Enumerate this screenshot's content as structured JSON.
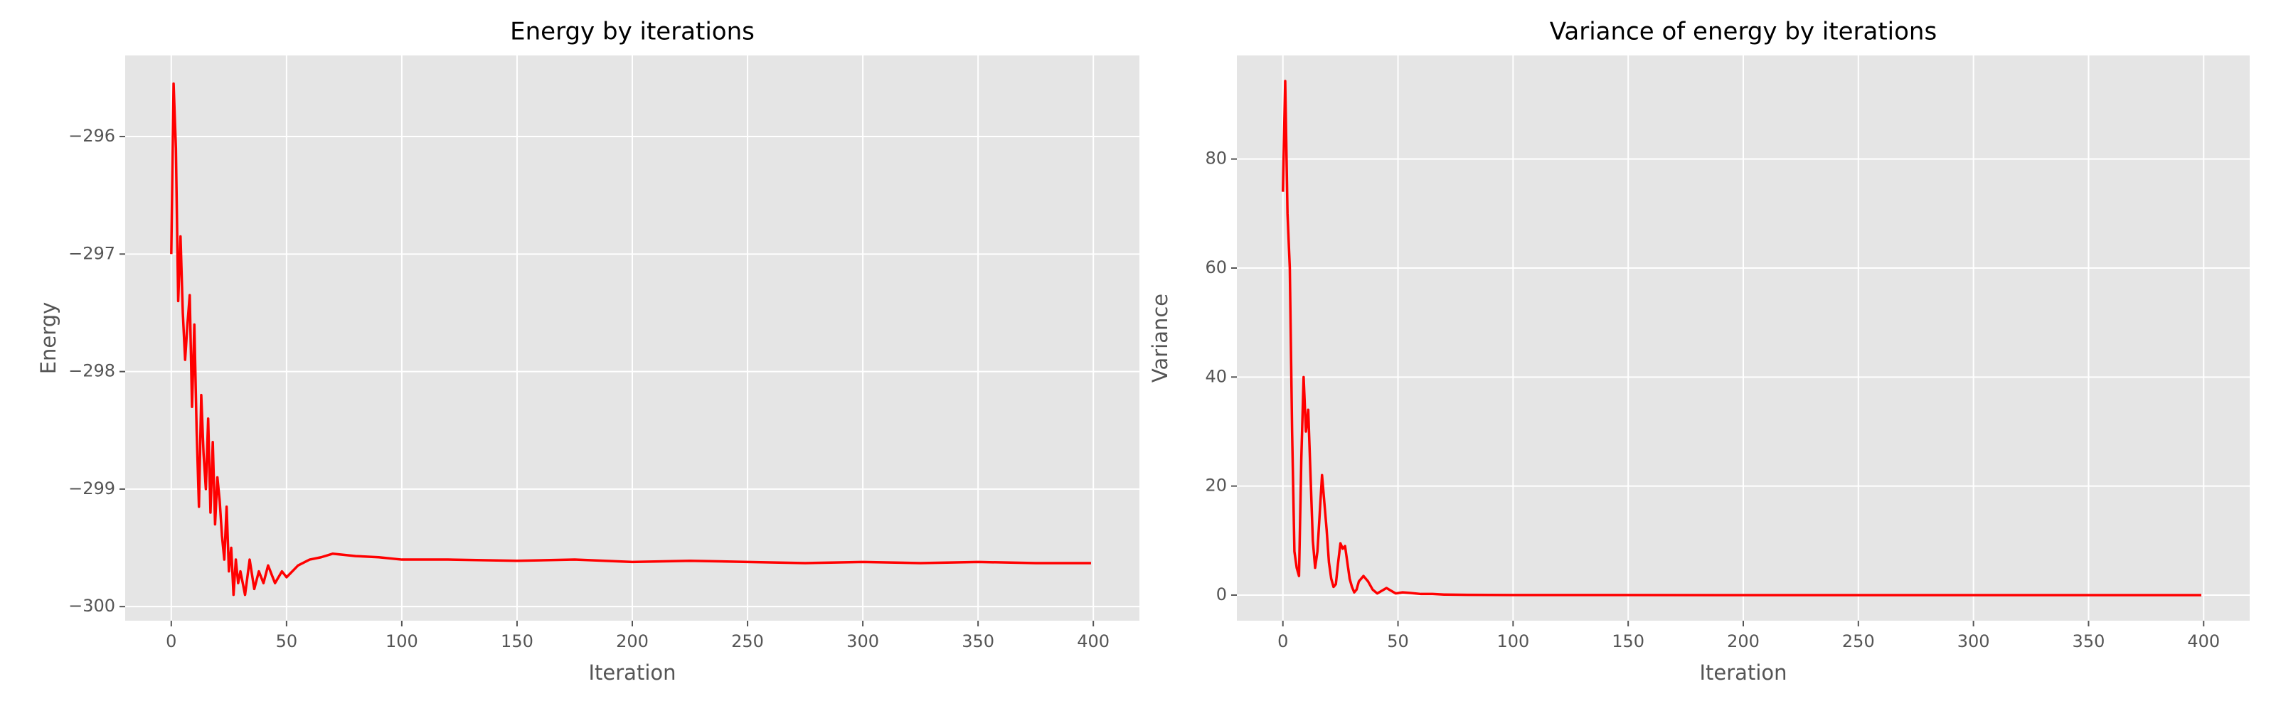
{
  "chart_data": [
    {
      "type": "line",
      "title": "Energy by iterations",
      "xlabel": "Iteration",
      "ylabel": "Energy",
      "color": "#ff0000",
      "grid": true,
      "x": [
        0,
        1,
        2,
        3,
        4,
        5,
        6,
        7,
        8,
        9,
        10,
        11,
        12,
        13,
        14,
        15,
        16,
        17,
        18,
        19,
        20,
        21,
        22,
        23,
        24,
        25,
        26,
        27,
        28,
        29,
        30,
        32,
        34,
        36,
        38,
        40,
        42,
        45,
        48,
        50,
        55,
        60,
        65,
        70,
        80,
        90,
        100,
        120,
        150,
        175,
        200,
        225,
        250,
        275,
        300,
        325,
        350,
        375,
        399
      ],
      "values": [
        -297.0,
        -295.55,
        -296.1,
        -297.4,
        -296.85,
        -297.5,
        -297.9,
        -297.6,
        -297.35,
        -298.3,
        -297.6,
        -298.5,
        -299.15,
        -298.2,
        -298.7,
        -299.0,
        -298.4,
        -299.2,
        -298.6,
        -299.3,
        -298.9,
        -299.1,
        -299.4,
        -299.6,
        -299.15,
        -299.7,
        -299.5,
        -299.9,
        -299.6,
        -299.8,
        -299.7,
        -299.9,
        -299.6,
        -299.85,
        -299.7,
        -299.8,
        -299.65,
        -299.8,
        -299.7,
        -299.75,
        -299.65,
        -299.6,
        -299.58,
        -299.55,
        -299.57,
        -299.58,
        -299.6,
        -299.6,
        -299.61,
        -299.6,
        -299.62,
        -299.61,
        -299.62,
        -299.63,
        -299.62,
        -299.63,
        -299.62,
        -299.63,
        -299.63
      ],
      "xlim": [
        -20,
        420
      ],
      "xticks": [
        0,
        50,
        100,
        150,
        200,
        250,
        300,
        350,
        400
      ],
      "ylim": [
        -300.12,
        -295.31
      ],
      "yticks": [
        {
          "value": -300,
          "label": "−300"
        },
        {
          "value": -299,
          "label": "−299"
        },
        {
          "value": -298,
          "label": "−298"
        },
        {
          "value": -297,
          "label": "−297"
        },
        {
          "value": -296,
          "label": "−296"
        }
      ]
    },
    {
      "type": "line",
      "title": "Variance of energy by iterations",
      "xlabel": "Iteration",
      "ylabel": "Variance",
      "color": "#ff0000",
      "grid": true,
      "x": [
        0,
        1,
        2,
        3,
        4,
        5,
        6,
        7,
        8,
        9,
        10,
        11,
        12,
        13,
        14,
        15,
        16,
        17,
        18,
        19,
        20,
        21,
        22,
        23,
        24,
        25,
        26,
        27,
        28,
        29,
        30,
        31,
        32,
        33,
        35,
        37,
        39,
        41,
        43,
        45,
        47,
        49,
        52,
        55,
        60,
        65,
        70,
        80,
        100,
        150,
        200,
        300,
        399
      ],
      "values": [
        74,
        94.3,
        70,
        60,
        30,
        8,
        5,
        3.5,
        25,
        40,
        30,
        34,
        22,
        10,
        5,
        8,
        15,
        22,
        17,
        12,
        6,
        3,
        1.5,
        2,
        6,
        9.5,
        8.5,
        9,
        6,
        3,
        1.5,
        0.5,
        1,
        2.5,
        3.5,
        2.5,
        1,
        0.3,
        0.8,
        1.3,
        0.8,
        0.3,
        0.5,
        0.4,
        0.2,
        0.2,
        0.1,
        0.05,
        0.02,
        0.01,
        0,
        0,
        0
      ],
      "xlim": [
        -20,
        420
      ],
      "xticks": [
        0,
        50,
        100,
        150,
        200,
        250,
        300,
        350,
        400
      ],
      "ylim": [
        -4.7,
        99.0
      ],
      "yticks": [
        0,
        20,
        40,
        60,
        80
      ]
    }
  ]
}
